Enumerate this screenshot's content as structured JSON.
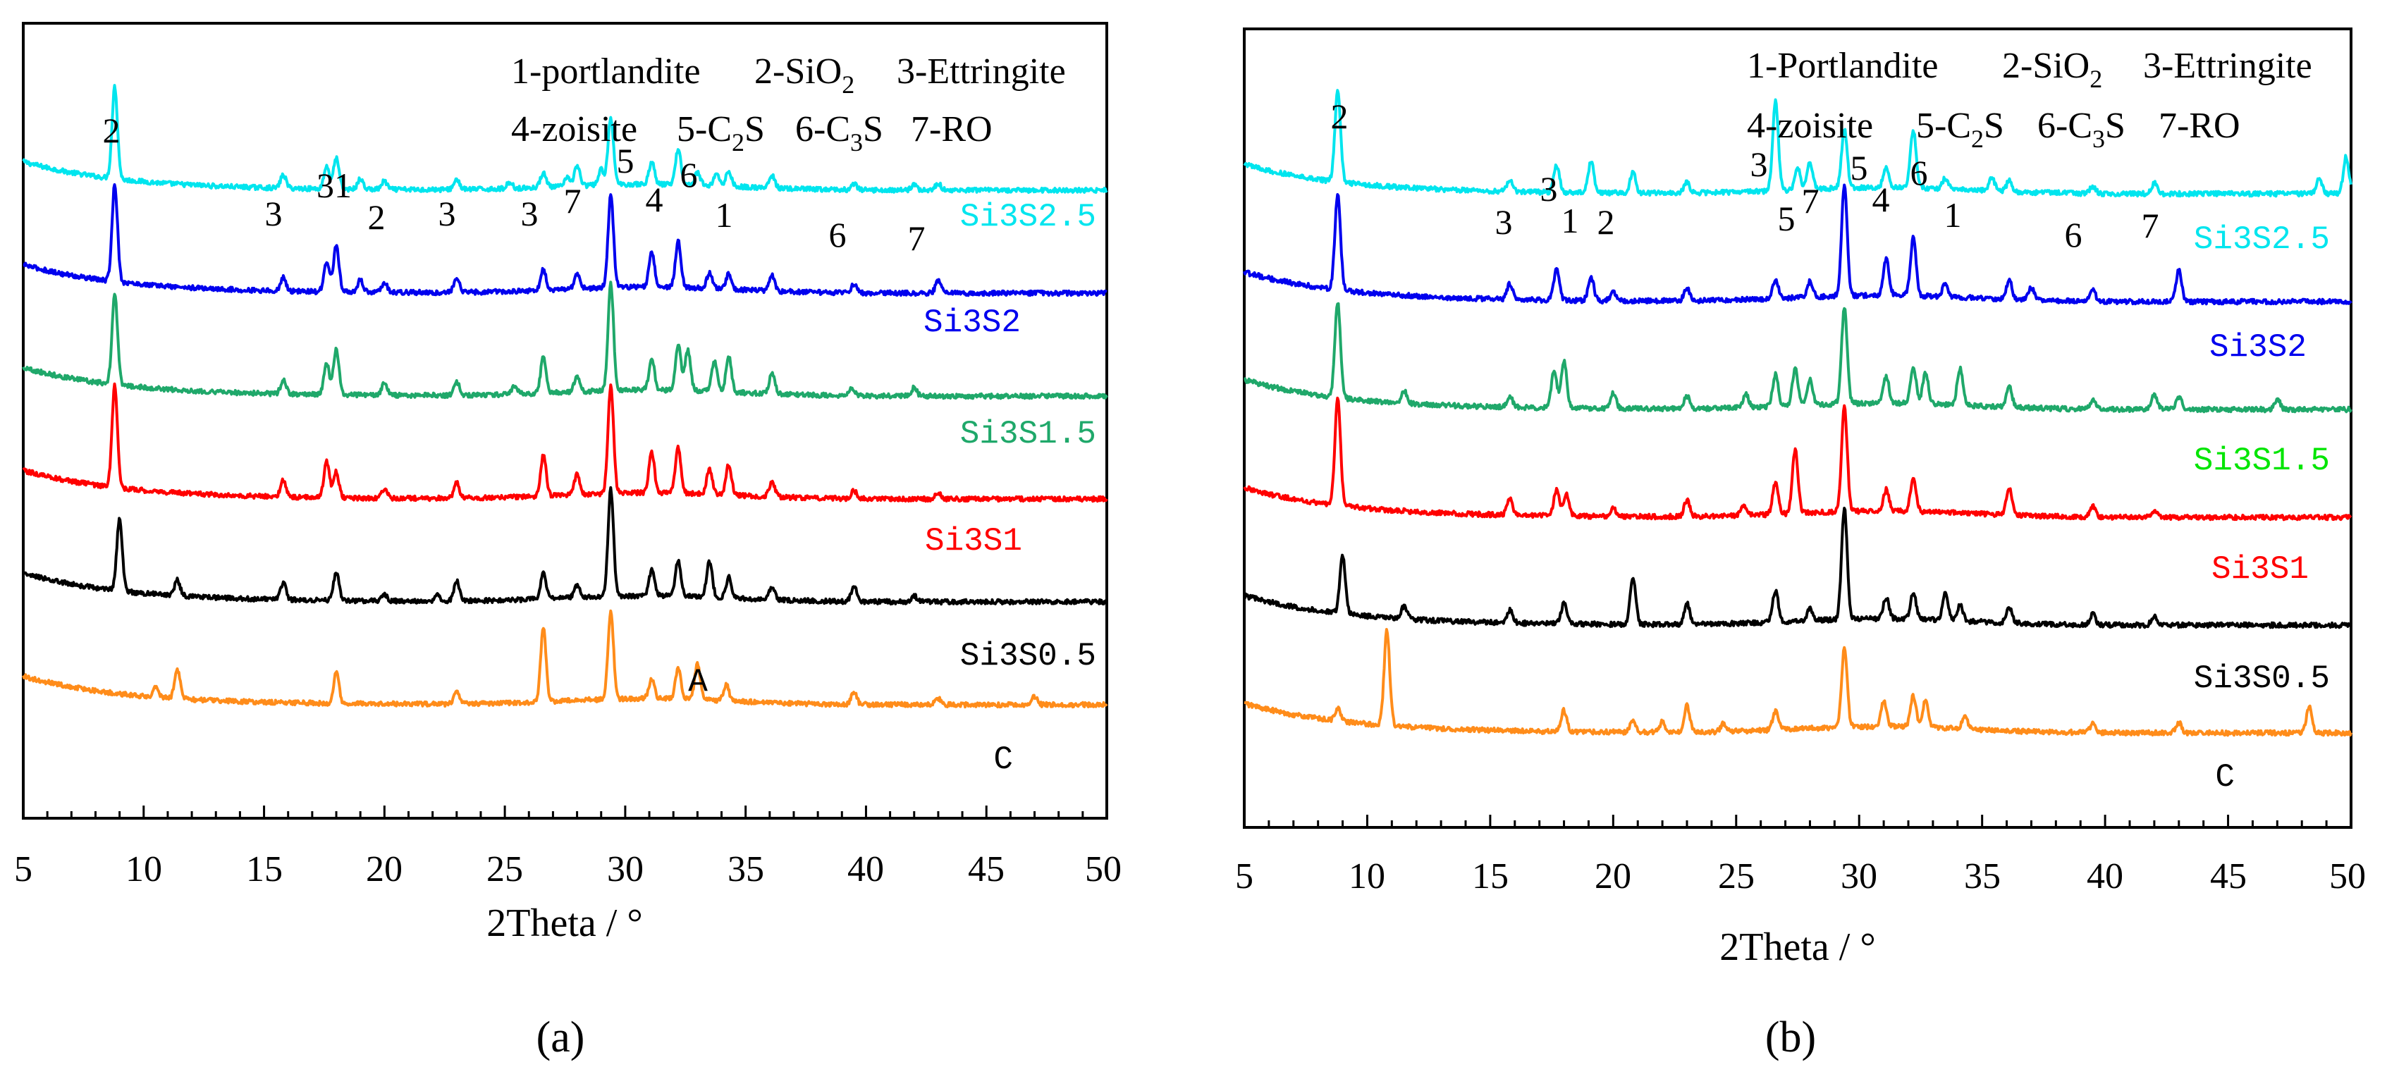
{
  "chart_data": [
    {
      "type": "line",
      "panel_label": "(a)",
      "xlabel": "2Theta / °",
      "ylabel": "",
      "xlim": [
        5,
        50
      ],
      "x_ticks": [
        "5",
        "10",
        "15",
        "20",
        "25",
        "30",
        "35",
        "40",
        "45",
        "50"
      ],
      "legend_lines": [
        [
          "1-portlandite",
          "2-SiO",
          "2",
          "3-Ettringite"
        ],
        [
          "4-zoisite",
          "5-C",
          "2",
          "S",
          "6-C",
          "3",
          "S",
          "7-RO"
        ]
      ],
      "series": [
        {
          "name": "Si3S2.5",
          "color": "#00e5ee",
          "baseline": 0.77,
          "peaks": [
            [
              8.8,
              0.9
            ],
            [
              15.8,
              0.13
            ],
            [
              17.6,
              0.22
            ],
            [
              18.0,
              0.3
            ],
            [
              19.0,
              0.1
            ],
            [
              20.0,
              0.08
            ],
            [
              23.0,
              0.1
            ],
            [
              25.2,
              0.06
            ],
            [
              26.6,
              0.15
            ],
            [
              27.6,
              0.08
            ],
            [
              28.0,
              0.2
            ],
            [
              29.0,
              0.15
            ],
            [
              29.4,
              0.65
            ],
            [
              31.1,
              0.22
            ],
            [
              32.2,
              0.35
            ],
            [
              33.0,
              0.12
            ],
            [
              33.8,
              0.12
            ],
            [
              34.3,
              0.15
            ],
            [
              36.1,
              0.12
            ],
            [
              39.5,
              0.06
            ],
            [
              42.0,
              0.06
            ],
            [
              43.0,
              0.07
            ]
          ]
        },
        {
          "name": "Si3S2",
          "color": "#0000ee",
          "baseline": 1.77,
          "peaks": [
            [
              8.8,
              0.95
            ],
            [
              15.8,
              0.13
            ],
            [
              17.6,
              0.3
            ],
            [
              18.0,
              0.45
            ],
            [
              19.0,
              0.12
            ],
            [
              20.0,
              0.1
            ],
            [
              23.0,
              0.15
            ],
            [
              26.6,
              0.2
            ],
            [
              28.0,
              0.15
            ],
            [
              29.4,
              0.9
            ],
            [
              31.1,
              0.35
            ],
            [
              32.2,
              0.45
            ],
            [
              33.5,
              0.15
            ],
            [
              34.3,
              0.15
            ],
            [
              36.1,
              0.15
            ],
            [
              39.5,
              0.08
            ],
            [
              43.0,
              0.12
            ]
          ]
        },
        {
          "name": "Si3S1.5",
          "color": "#1fa86a",
          "baseline": 2.77,
          "peaks": [
            [
              8.8,
              0.9
            ],
            [
              15.8,
              0.13
            ],
            [
              17.6,
              0.3
            ],
            [
              18.0,
              0.45
            ],
            [
              20.0,
              0.12
            ],
            [
              23.0,
              0.13
            ],
            [
              25.4,
              0.08
            ],
            [
              26.6,
              0.35
            ],
            [
              28.0,
              0.15
            ],
            [
              29.4,
              1.05
            ],
            [
              31.1,
              0.3
            ],
            [
              32.2,
              0.45
            ],
            [
              32.6,
              0.4
            ],
            [
              33.7,
              0.3
            ],
            [
              34.3,
              0.35
            ],
            [
              36.1,
              0.2
            ],
            [
              39.4,
              0.08
            ],
            [
              42.0,
              0.08
            ]
          ]
        },
        {
          "name": "Si3S1",
          "color": "#ff0000",
          "baseline": 3.77,
          "peaks": [
            [
              8.8,
              1.0
            ],
            [
              15.8,
              0.16
            ],
            [
              17.6,
              0.35
            ],
            [
              18.0,
              0.25
            ],
            [
              20.0,
              0.08
            ],
            [
              23.0,
              0.15
            ],
            [
              26.6,
              0.4
            ],
            [
              28.0,
              0.2
            ],
            [
              29.4,
              1.05
            ],
            [
              31.1,
              0.4
            ],
            [
              32.2,
              0.45
            ],
            [
              33.5,
              0.25
            ],
            [
              34.3,
              0.3
            ],
            [
              36.1,
              0.15
            ],
            [
              39.5,
              0.08
            ],
            [
              43.0,
              0.06
            ]
          ]
        },
        {
          "name": "Si3S0.5",
          "color": "#000000",
          "baseline": 4.77,
          "peaks": [
            [
              9.0,
              0.7
            ],
            [
              11.4,
              0.15
            ],
            [
              15.8,
              0.16
            ],
            [
              18.0,
              0.28
            ],
            [
              20.0,
              0.06
            ],
            [
              22.2,
              0.06
            ],
            [
              23.0,
              0.2
            ],
            [
              26.6,
              0.25
            ],
            [
              28.0,
              0.12
            ],
            [
              29.4,
              1.05
            ],
            [
              31.1,
              0.25
            ],
            [
              32.2,
              0.35
            ],
            [
              33.5,
              0.35
            ],
            [
              34.3,
              0.2
            ],
            [
              36.1,
              0.12
            ],
            [
              39.5,
              0.15
            ],
            [
              42.0,
              0.06
            ]
          ]
        },
        {
          "name": "C",
          "color": "#ff8c1a",
          "baseline": 5.77,
          "peaks": [
            [
              10.5,
              0.1
            ],
            [
              11.4,
              0.28
            ],
            [
              18.0,
              0.3
            ],
            [
              23.0,
              0.12
            ],
            [
              26.6,
              0.72
            ],
            [
              29.4,
              0.85
            ],
            [
              31.1,
              0.2
            ],
            [
              32.2,
              0.3
            ],
            [
              33.0,
              0.35
            ],
            [
              34.2,
              0.15
            ],
            [
              39.5,
              0.12
            ],
            [
              43.0,
              0.06
            ],
            [
              47.0,
              0.08
            ]
          ]
        }
      ],
      "series_labels": [
        "Si3S2.5",
        "Si3S2",
        "Si3S1.5",
        "Si3S1",
        "Si3S0.5",
        "C"
      ],
      "annotations": [
        {
          "text": "2",
          "x": 8.8
        },
        {
          "text": "3",
          "x": 15.8
        },
        {
          "text": "31",
          "x": 17.7
        },
        {
          "text": "2",
          "x": 19.9
        },
        {
          "text": "3",
          "x": 23.0
        },
        {
          "text": "3",
          "x": 26.0
        },
        {
          "text": "7",
          "x": 27.9
        },
        {
          "text": "5",
          "x": 29.7
        },
        {
          "text": "4",
          "x": 31.0
        },
        {
          "text": "6",
          "x": 32.3
        },
        {
          "text": "1",
          "x": 34.3
        },
        {
          "text": "6",
          "x": 39.3
        },
        {
          "text": "7",
          "x": 42.5
        },
        {
          "text": "A",
          "x": 33.0
        }
      ]
    },
    {
      "type": "line",
      "panel_label": "(b)",
      "xlabel": "2Theta / °",
      "ylabel": "",
      "xlim": [
        5,
        50
      ],
      "x_ticks": [
        "5",
        "10",
        "15",
        "20",
        "25",
        "30",
        "35",
        "40",
        "45",
        "50"
      ],
      "legend_lines": [
        [
          "1-Portlandite",
          "2-SiO",
          "2",
          "3-Ettringite"
        ],
        [
          "4-zoisite",
          "5-C",
          "2",
          "S",
          "6-C",
          "3",
          "S",
          "7-RO"
        ]
      ],
      "series": [
        {
          "name": "Si3S2.5",
          "color": "#00e5ee",
          "baseline": 0.77,
          "peaks": [
            [
              8.8,
              0.85
            ],
            [
              15.8,
              0.1
            ],
            [
              17.7,
              0.25
            ],
            [
              19.1,
              0.3
            ],
            [
              20.8,
              0.2
            ],
            [
              23.0,
              0.1
            ],
            [
              26.6,
              0.85
            ],
            [
              27.5,
              0.2
            ],
            [
              28.0,
              0.25
            ],
            [
              29.4,
              0.55
            ],
            [
              31.1,
              0.2
            ],
            [
              32.2,
              0.55
            ],
            [
              33.5,
              0.1
            ],
            [
              35.4,
              0.12
            ],
            [
              36.1,
              0.1
            ],
            [
              39.5,
              0.07
            ],
            [
              42.0,
              0.1
            ],
            [
              48.7,
              0.15
            ],
            [
              49.8,
              0.35
            ]
          ]
        },
        {
          "name": "Si3S2",
          "color": "#0000ee",
          "baseline": 1.77,
          "peaks": [
            [
              8.8,
              0.9
            ],
            [
              15.8,
              0.15
            ],
            [
              17.7,
              0.3
            ],
            [
              19.1,
              0.22
            ],
            [
              20.0,
              0.08
            ],
            [
              23.0,
              0.12
            ],
            [
              26.6,
              0.18
            ],
            [
              28.0,
              0.15
            ],
            [
              29.4,
              1.05
            ],
            [
              31.1,
              0.35
            ],
            [
              32.2,
              0.55
            ],
            [
              33.5,
              0.12
            ],
            [
              36.1,
              0.18
            ],
            [
              37.0,
              0.12
            ],
            [
              39.5,
              0.1
            ],
            [
              43.0,
              0.3
            ]
          ]
        },
        {
          "name": "Si3S1.5",
          "color": "#1fa86a",
          "baseline": 2.77,
          "peaks": [
            [
              8.8,
              0.9
            ],
            [
              11.5,
              0.12
            ],
            [
              15.8,
              0.1
            ],
            [
              17.6,
              0.35
            ],
            [
              18.0,
              0.45
            ],
            [
              20.0,
              0.15
            ],
            [
              23.0,
              0.12
            ],
            [
              25.4,
              0.12
            ],
            [
              26.6,
              0.3
            ],
            [
              27.4,
              0.35
            ],
            [
              28.0,
              0.25
            ],
            [
              29.4,
              0.9
            ],
            [
              31.1,
              0.25
            ],
            [
              32.2,
              0.35
            ],
            [
              32.7,
              0.3
            ],
            [
              34.1,
              0.35
            ],
            [
              36.1,
              0.2
            ],
            [
              39.5,
              0.08
            ],
            [
              42.0,
              0.15
            ],
            [
              43.0,
              0.12
            ],
            [
              47.0,
              0.1
            ]
          ]
        },
        {
          "name": "Si3S1",
          "color": "#ff0000",
          "baseline": 3.77,
          "peaks": [
            [
              8.8,
              1.0
            ],
            [
              15.8,
              0.15
            ],
            [
              17.7,
              0.25
            ],
            [
              18.1,
              0.2
            ],
            [
              20.0,
              0.08
            ],
            [
              23.0,
              0.15
            ],
            [
              25.3,
              0.1
            ],
            [
              26.6,
              0.3
            ],
            [
              27.4,
              0.6
            ],
            [
              29.4,
              1.0
            ],
            [
              31.1,
              0.2
            ],
            [
              32.2,
              0.3
            ],
            [
              36.1,
              0.25
            ],
            [
              39.5,
              0.1
            ],
            [
              42.0,
              0.06
            ]
          ]
        },
        {
          "name": "Si3S0.5",
          "color": "#000000",
          "baseline": 4.77,
          "peaks": [
            [
              9.0,
              0.55
            ],
            [
              11.5,
              0.12
            ],
            [
              15.8,
              0.12
            ],
            [
              18.0,
              0.2
            ],
            [
              20.8,
              0.45
            ],
            [
              23.0,
              0.2
            ],
            [
              26.6,
              0.3
            ],
            [
              28.0,
              0.12
            ],
            [
              29.4,
              1.05
            ],
            [
              31.1,
              0.2
            ],
            [
              32.2,
              0.25
            ],
            [
              33.5,
              0.25
            ],
            [
              34.1,
              0.15
            ],
            [
              36.1,
              0.15
            ],
            [
              39.5,
              0.1
            ],
            [
              42.0,
              0.08
            ]
          ]
        },
        {
          "name": "C",
          "color": "#ff8c1a",
          "baseline": 5.77,
          "peaks": [
            [
              8.8,
              0.12
            ],
            [
              10.8,
              0.9
            ],
            [
              18.0,
              0.2
            ],
            [
              20.8,
              0.1
            ],
            [
              22.0,
              0.1
            ],
            [
              23.0,
              0.25
            ],
            [
              24.5,
              0.08
            ],
            [
              26.6,
              0.18
            ],
            [
              29.4,
              0.75
            ],
            [
              31.0,
              0.25
            ],
            [
              32.2,
              0.3
            ],
            [
              32.7,
              0.25
            ],
            [
              34.3,
              0.12
            ],
            [
              39.5,
              0.08
            ],
            [
              43.0,
              0.1
            ],
            [
              48.3,
              0.25
            ]
          ]
        }
      ],
      "series_labels": [
        "Si3S2.5",
        "Si3S2",
        "Si3S1.5",
        "Si3S1",
        "Si3S0.5",
        "C"
      ],
      "annotations": [
        {
          "text": "2",
          "x": 8.8
        },
        {
          "text": "3",
          "x": 15.6
        },
        {
          "text": "3",
          "x": 17.6
        },
        {
          "text": "1",
          "x": 18.4
        },
        {
          "text": "2",
          "x": 19.9
        },
        {
          "text": "3",
          "x": 26.5
        },
        {
          "text": "5",
          "x": 27.2
        },
        {
          "text": "7",
          "x": 27.9
        },
        {
          "text": "5",
          "x": 29.7
        },
        {
          "text": "4",
          "x": 31.0
        },
        {
          "text": "6",
          "x": 32.6
        },
        {
          "text": "1",
          "x": 34.3
        },
        {
          "text": "6",
          "x": 38.8
        },
        {
          "text": "7",
          "x": 41.9
        }
      ]
    }
  ]
}
